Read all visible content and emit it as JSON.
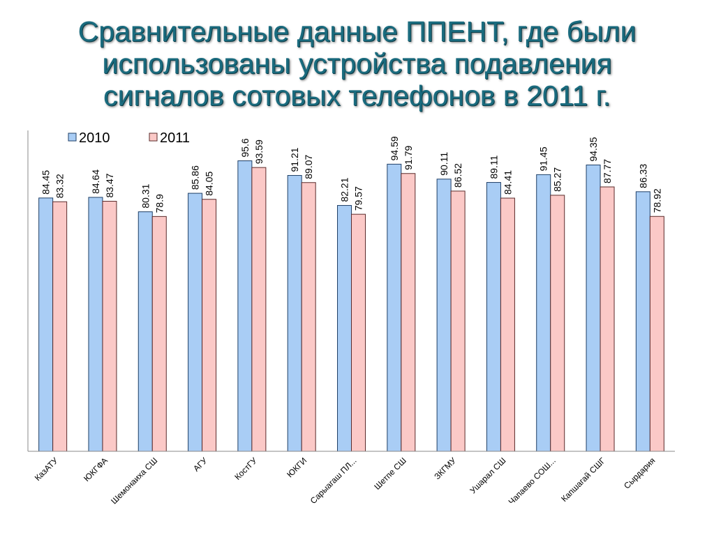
{
  "title_lines": [
    "Сравнительные данные ППЕНТ, где были",
    "использованы устройства подавления",
    "сигналов сотовых телефонов в 2011 г."
  ],
  "colors": {
    "series_2010": "#a9cdf5",
    "series_2010_edge": "#1f3f66",
    "series_2011": "#fbc9c7",
    "series_2011_edge": "#5a2a2a",
    "title": "#1a6b7e"
  },
  "chart_data": {
    "type": "bar",
    "title": "Сравнительные данные ППЕНТ, где были использованы устройства подавления сигналов сотовых телефонов в 2011 г.",
    "categories": [
      "КазАТУ",
      "ЮКГФА",
      "Шемонаиха СШ",
      "АГУ",
      "КостГУ",
      "ЮКГИ",
      "Сарыагаш ПЛ...",
      "Шетпе СШ",
      "ЗКГМУ",
      "Ушарал СШ",
      "Чапаево СОШ...",
      "Капшагай СШГ",
      "Сырдария"
    ],
    "series": [
      {
        "name": "2010",
        "values": [
          84.45,
          84.64,
          80.31,
          85.86,
          95.6,
          91.21,
          82.21,
          94.59,
          90.11,
          89.11,
          91.45,
          94.35,
          86.33
        ]
      },
      {
        "name": "2011",
        "values": [
          83.32,
          83.47,
          78.9,
          84.05,
          93.59,
          89.07,
          79.57,
          91.79,
          86.52,
          84.41,
          85.27,
          87.77,
          78.92
        ]
      }
    ],
    "ylim": [
      0,
      100
    ],
    "legend_position": "top-left",
    "grid": false,
    "data_labels": true
  }
}
